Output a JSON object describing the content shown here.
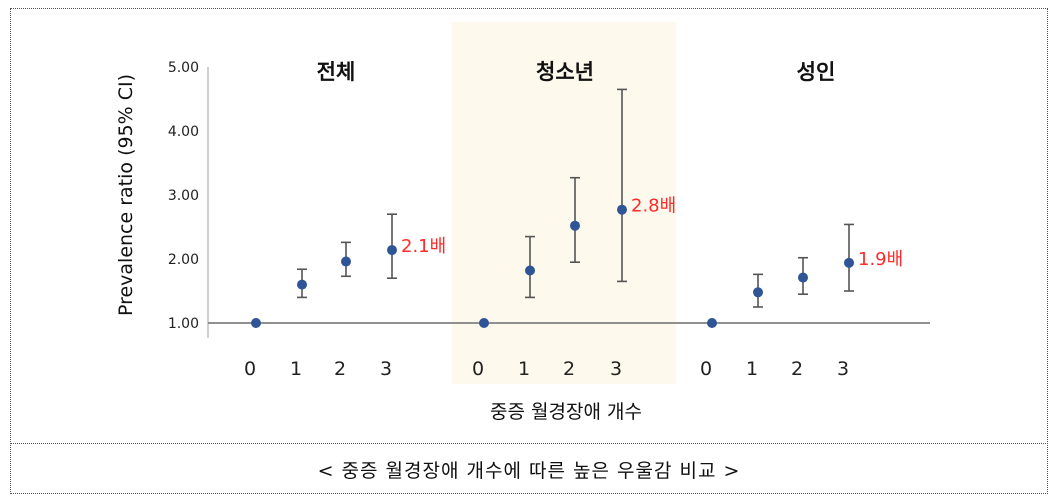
{
  "chart_data": {
    "type": "scatter",
    "ylabel": "Prevalence ratio (95% CI)",
    "xlabel": "중증 월경장애 개수",
    "ylim": [
      1.0,
      5.0
    ],
    "yticks": [
      "1.00",
      "2.00",
      "3.00",
      "4.00",
      "5.00"
    ],
    "baseline": 1.0,
    "highlight_color": "#fdf9ec",
    "point_color": "#2f5597",
    "errorbar_color": "#555555",
    "annotation_color": "#ff2a2a",
    "panels": [
      {
        "title": "전체",
        "categories": [
          "0",
          "1",
          "2",
          "3"
        ],
        "values": [
          1.0,
          1.6,
          1.96,
          2.14
        ],
        "lower": [
          1.0,
          1.4,
          1.73,
          1.7
        ],
        "upper": [
          1.0,
          1.84,
          2.26,
          2.7
        ],
        "annotation": "2.1배",
        "highlight": false
      },
      {
        "title": "청소년",
        "categories": [
          "0",
          "1",
          "2",
          "3"
        ],
        "values": [
          1.0,
          1.82,
          2.52,
          2.77
        ],
        "lower": [
          1.0,
          1.4,
          1.95,
          1.65
        ],
        "upper": [
          1.0,
          2.35,
          3.27,
          4.65
        ],
        "annotation": "2.8배",
        "highlight": true
      },
      {
        "title": "성인",
        "categories": [
          "0",
          "1",
          "2",
          "3"
        ],
        "values": [
          1.0,
          1.48,
          1.71,
          1.94
        ],
        "lower": [
          1.0,
          1.25,
          1.45,
          1.5
        ],
        "upper": [
          1.0,
          1.76,
          2.02,
          2.54
        ],
        "annotation": "1.9배",
        "highlight": false
      }
    ]
  },
  "caption": "< 중증 월경장애 개수에 따른 높은 우울감 비교 >"
}
